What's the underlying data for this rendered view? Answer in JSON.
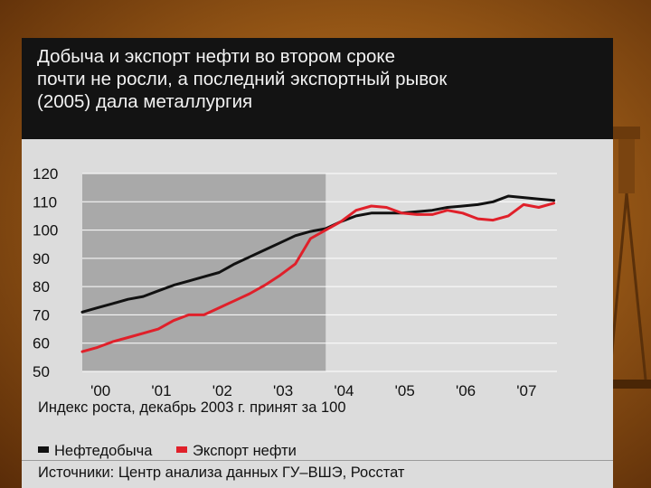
{
  "title_lines": [
    "Добыча и экспорт нефти во втором сроке",
    "почти не росли, а последний экспортный рывок",
    "(2005) дала металлургия"
  ],
  "caption": "Индекс роста, декабрь 2003 г. принят за 100",
  "source": "Источники: Центр анализа данных ГУ–ВШЭ, Росстат",
  "colors": {
    "oil_production": "#111111",
    "oil_export": "#e0202a",
    "shaded_period": "#a9a9a9",
    "panel_bg": "#dcdcdc",
    "title_bg": "#131313"
  },
  "chart_data": {
    "type": "line",
    "title": "Добыча и экспорт нефти во втором сроке почти не росли, а последний экспортный рывок (2005) дала металлургия",
    "xlabel": "Индекс роста, декабрь 2003 г. принят за 100",
    "ylabel": "",
    "ylim": [
      50,
      120
    ],
    "yticks": [
      50,
      60,
      70,
      80,
      90,
      100,
      110,
      120
    ],
    "xlim": [
      2000.0,
      2007.8
    ],
    "xticks": [
      {
        "x": 2000.3,
        "label": "'00"
      },
      {
        "x": 2001.3,
        "label": "'01"
      },
      {
        "x": 2002.3,
        "label": "'02"
      },
      {
        "x": 2003.3,
        "label": "'03"
      },
      {
        "x": 2004.3,
        "label": "'04"
      },
      {
        "x": 2005.3,
        "label": "'05"
      },
      {
        "x": 2006.3,
        "label": "'06"
      },
      {
        "x": 2007.3,
        "label": "'07"
      }
    ],
    "shaded_region": [
      2000.0,
      2004.0
    ],
    "legend_position": "bottom",
    "series": [
      {
        "name": "Нефтедобыча",
        "x": [
          2000.0,
          2000.25,
          2000.5,
          2000.75,
          2001.0,
          2001.25,
          2001.5,
          2001.75,
          2002.0,
          2002.25,
          2002.5,
          2002.75,
          2003.0,
          2003.25,
          2003.5,
          2003.75,
          2004.0,
          2004.25,
          2004.5,
          2004.75,
          2005.0,
          2005.25,
          2005.5,
          2005.75,
          2006.0,
          2006.25,
          2006.5,
          2006.75,
          2007.0,
          2007.25,
          2007.5,
          2007.75
        ],
        "y": [
          71,
          72.5,
          74,
          75.5,
          76.5,
          78.5,
          80.5,
          82,
          83.5,
          85,
          88,
          90.5,
          93,
          95.5,
          98,
          99.5,
          100.5,
          103,
          105,
          106,
          106,
          106,
          106.5,
          107,
          108,
          108.5,
          109,
          110,
          112,
          111.5,
          111,
          110.5
        ]
      },
      {
        "name": "Экспорт нефти",
        "x": [
          2000.0,
          2000.25,
          2000.5,
          2000.75,
          2001.0,
          2001.25,
          2001.5,
          2001.75,
          2002.0,
          2002.25,
          2002.5,
          2002.75,
          2003.0,
          2003.25,
          2003.5,
          2003.75,
          2004.0,
          2004.25,
          2004.5,
          2004.75,
          2005.0,
          2005.25,
          2005.5,
          2005.75,
          2006.0,
          2006.25,
          2006.5,
          2006.75,
          2007.0,
          2007.25,
          2007.5,
          2007.75
        ],
        "y": [
          57,
          58.5,
          60.5,
          62,
          63.5,
          65,
          68,
          70,
          70,
          72.5,
          75,
          77.5,
          80.5,
          84,
          88,
          97,
          100,
          103,
          107,
          108.5,
          108,
          106,
          105.5,
          105.5,
          107,
          106,
          104,
          103.5,
          105,
          109,
          108,
          109.5
        ]
      }
    ]
  }
}
